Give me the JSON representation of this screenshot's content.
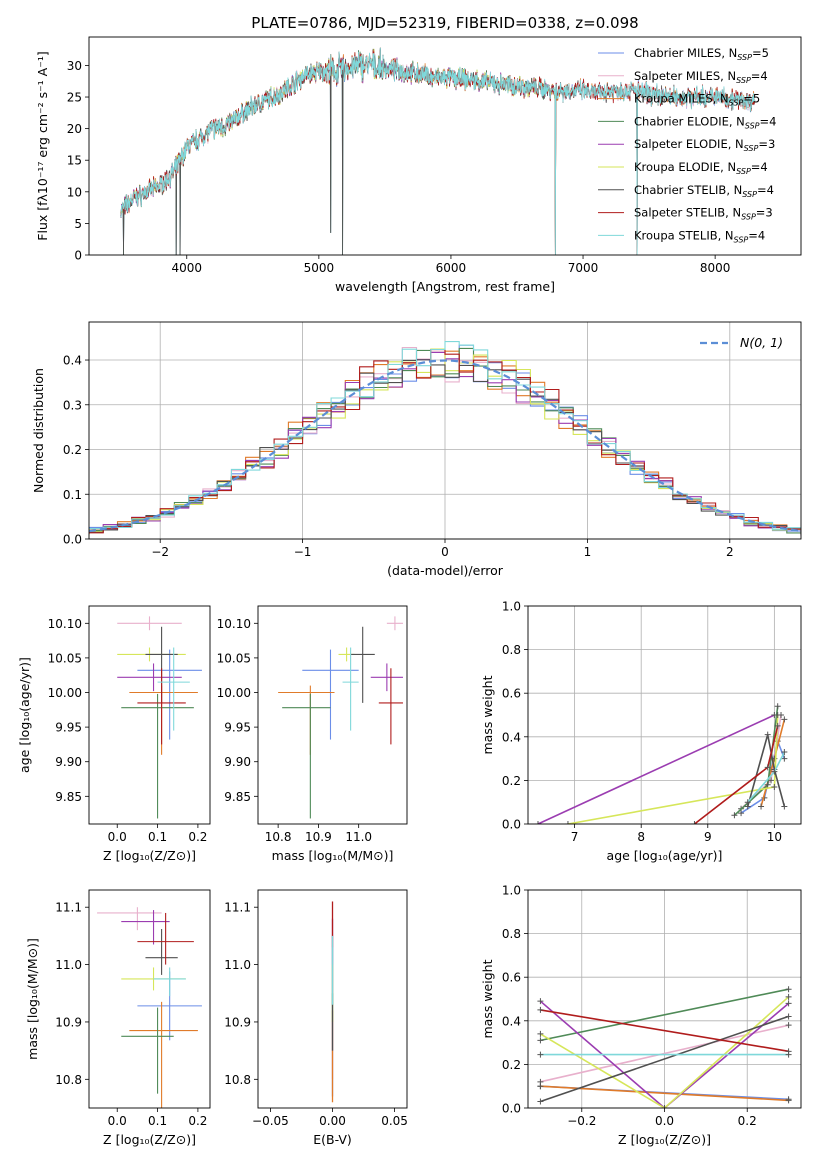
{
  "figure_title": "PLATE=0786, MJD=52319, FIBERID=0338, z=0.098",
  "colors": [
    "#6b8ee8",
    "#e8b0cc",
    "#e07b2a",
    "#4f8a57",
    "#9b3db1",
    "#d6e65a",
    "#505050",
    "#b01c1c",
    "#7fd8da"
  ],
  "chart_data": [
    {
      "id": "spectrum",
      "type": "line",
      "title": "PLATE=0786, MJD=52319, FIBERID=0338, z=0.098",
      "xlabel": "wavelength [Angstrom, rest frame]",
      "ylabel": "Flux [fλ10⁻¹⁷ erg cm⁻² s⁻¹ A⁻¹]",
      "xlim": [
        3260,
        8650
      ],
      "ylim": [
        0,
        34.5
      ],
      "xticks": [
        4000,
        5000,
        6000,
        7000,
        8000
      ],
      "yticks": [
        0,
        5,
        10,
        15,
        20,
        25,
        30
      ],
      "legend": "top-right",
      "grid": false,
      "continuum": [
        [
          3500,
          7
        ],
        [
          3600,
          9
        ],
        [
          3700,
          10
        ],
        [
          3800,
          11
        ],
        [
          3900,
          13
        ],
        [
          3950,
          15
        ],
        [
          4000,
          17
        ],
        [
          4100,
          18.5
        ],
        [
          4200,
          20
        ],
        [
          4300,
          20.5
        ],
        [
          4400,
          22
        ],
        [
          4500,
          23.5
        ],
        [
          4600,
          24.5
        ],
        [
          4700,
          25.5
        ],
        [
          4800,
          27
        ],
        [
          4900,
          28.5
        ],
        [
          5000,
          29
        ],
        [
          5100,
          29
        ],
        [
          5200,
          29.5
        ],
        [
          5300,
          30
        ],
        [
          5400,
          30
        ],
        [
          5500,
          29.5
        ],
        [
          5600,
          29.2
        ],
        [
          5700,
          28.8
        ],
        [
          5800,
          28.5
        ],
        [
          5900,
          28
        ],
        [
          6000,
          28
        ],
        [
          6100,
          27.8
        ],
        [
          6200,
          27.6
        ],
        [
          6300,
          27.2
        ],
        [
          6400,
          27
        ],
        [
          6500,
          26.8
        ],
        [
          6600,
          26.5
        ],
        [
          6700,
          26.3
        ],
        [
          6800,
          26
        ],
        [
          6900,
          26
        ],
        [
          7000,
          26
        ],
        [
          7100,
          25.5
        ],
        [
          7200,
          26
        ],
        [
          7300,
          26
        ],
        [
          7400,
          26
        ],
        [
          7500,
          25.5
        ],
        [
          7600,
          25.2
        ],
        [
          7700,
          25
        ],
        [
          7800,
          25
        ],
        [
          7900,
          25
        ],
        [
          8000,
          25
        ],
        [
          8100,
          24.8
        ],
        [
          8200,
          24.5
        ],
        [
          8300,
          24.4
        ]
      ],
      "series": [
        {
          "label": "Chabrier MILES, N",
          "sub": "SSP",
          "suffix": "=5",
          "xmax": 8300
        },
        {
          "label": "Salpeter MILES, N",
          "sub": "SSP",
          "suffix": "=4",
          "xmax": 8300
        },
        {
          "label": "Kroupa MILES, N",
          "sub": "SSP",
          "suffix": "=5",
          "xmax": 8300
        },
        {
          "label": "Chabrier ELODIE, N",
          "sub": "SSP",
          "suffix": "=4",
          "xmax": 6800
        },
        {
          "label": "Salpeter ELODIE, N",
          "sub": "SSP",
          "suffix": "=3",
          "xmax": 6800
        },
        {
          "label": "Kroupa ELODIE, N",
          "sub": "SSP",
          "suffix": "=4",
          "xmax": 6800
        },
        {
          "label": "Chabrier STELIB, N",
          "sub": "SSP",
          "suffix": "=4",
          "xmax": 8300
        },
        {
          "label": "Salpeter STELIB, N",
          "sub": "SSP",
          "suffix": "=3",
          "xmax": 8300
        },
        {
          "label": "Kroupa STELIB, N",
          "sub": "SSP",
          "suffix": "=4",
          "xmax": 8300
        }
      ],
      "drops": [
        [
          3520,
          0
        ],
        [
          3920,
          0
        ],
        [
          3950,
          0
        ],
        [
          5090,
          3.5
        ],
        [
          5180,
          0
        ],
        [
          6790,
          0
        ],
        [
          7410,
          0
        ]
      ]
    },
    {
      "id": "residuals",
      "type": "step",
      "xlabel": "(data-model)/error",
      "ylabel": "Normed distribution",
      "xlim": [
        -2.5,
        2.5
      ],
      "ylim": [
        0,
        0.485
      ],
      "xticks": [
        -2,
        -1,
        0,
        1,
        2
      ],
      "yticks": [
        0.0,
        0.1,
        0.2,
        0.3,
        0.4
      ],
      "grid": true,
      "bin_width": 0.1,
      "reference": {
        "label": "N(0, 1)",
        "color": "#5b8ed6"
      },
      "legend": "top-right"
    },
    {
      "id": "age-vs-Z",
      "type": "errorbar",
      "xlabel": "Z [log₁₀(Z/Z⊙)]",
      "ylabel": "age  [log₁₀(age/yr)]",
      "xlim": [
        -0.07,
        0.23
      ],
      "ylim": [
        9.81,
        10.125
      ],
      "xticks": [
        0.0,
        0.1,
        0.2
      ],
      "yticks": [
        9.85,
        9.9,
        9.95,
        10.0,
        10.05,
        10.1
      ],
      "points": [
        {
          "x": 0.13,
          "xerr": [
            0.08,
            0.08
          ],
          "y": 10.032,
          "yerr": [
            0.1,
            0.03
          ]
        },
        {
          "x": 0.08,
          "xerr": [
            0.08,
            0.08
          ],
          "y": 10.1,
          "yerr": [
            0.01,
            0.01
          ]
        },
        {
          "x": 0.11,
          "xerr": [
            0.08,
            0.09
          ],
          "y": 10.0,
          "yerr": [
            0.09,
            0.01
          ]
        },
        {
          "x": 0.1,
          "xerr": [
            0.09,
            0.09
          ],
          "y": 9.978,
          "yerr": [
            0.16,
            0.02
          ]
        },
        {
          "x": 0.09,
          "xerr": [
            0.09,
            0.07
          ],
          "y": 10.022,
          "yerr": [
            0.02,
            0.02
          ]
        },
        {
          "x": 0.08,
          "xerr": [
            0.08,
            0.09
          ],
          "y": 10.055,
          "yerr": [
            0.01,
            0.01
          ]
        },
        {
          "x": 0.11,
          "xerr": [
            0.04,
            0.04
          ],
          "y": 10.055,
          "yerr": [
            0.07,
            0.04
          ]
        },
        {
          "x": 0.11,
          "xerr": [
            0.06,
            0.06
          ],
          "y": 9.985,
          "yerr": [
            0.06,
            0.05
          ]
        },
        {
          "x": 0.14,
          "xerr": [
            0.04,
            0.04
          ],
          "y": 10.015,
          "yerr": [
            0.07,
            0.05
          ]
        }
      ]
    },
    {
      "id": "age-vs-mass",
      "type": "errorbar",
      "xlabel": "mass [log₁₀(M/M⊙)]",
      "ylabel": "",
      "xlim": [
        10.75,
        11.12
      ],
      "ylim": [
        9.81,
        10.125
      ],
      "xticks": [
        10.8,
        10.9,
        11.0
      ],
      "xticklabels": [
        "10.8",
        "10.9",
        "11.0"
      ],
      "yticks": [
        9.85,
        9.9,
        9.95,
        10.0,
        10.05,
        10.1
      ],
      "points": [
        {
          "x": 10.93,
          "xerr": [
            0.07,
            0.07
          ],
          "y": 10.032,
          "yerr": [
            0.1,
            0.03
          ]
        },
        {
          "x": 11.09,
          "xerr": [
            0.02,
            0.02
          ],
          "y": 10.1,
          "yerr": [
            0.01,
            0.01
          ]
        },
        {
          "x": 10.88,
          "xerr": [
            0.08,
            0.06
          ],
          "y": 10.0,
          "yerr": [
            0.09,
            0.01
          ]
        },
        {
          "x": 10.88,
          "xerr": [
            0.07,
            0.05
          ],
          "y": 9.978,
          "yerr": [
            0.16,
            0.02
          ]
        },
        {
          "x": 11.07,
          "xerr": [
            0.04,
            0.04
          ],
          "y": 10.022,
          "yerr": [
            0.02,
            0.02
          ]
        },
        {
          "x": 10.97,
          "xerr": [
            0.02,
            0.02
          ],
          "y": 10.055,
          "yerr": [
            0.01,
            0.01
          ]
        },
        {
          "x": 11.01,
          "xerr": [
            0.03,
            0.03
          ],
          "y": 10.055,
          "yerr": [
            0.07,
            0.04
          ]
        },
        {
          "x": 11.08,
          "xerr": [
            0.03,
            0.03
          ],
          "y": 9.985,
          "yerr": [
            0.06,
            0.05
          ]
        },
        {
          "x": 10.98,
          "xerr": [
            0.02,
            0.02
          ],
          "y": 10.015,
          "yerr": [
            0.07,
            0.05
          ]
        }
      ]
    },
    {
      "id": "weight-vs-age",
      "type": "line",
      "xlabel": "age  [log₁₀(age/yr)]",
      "ylabel": "mass weight",
      "xlim": [
        6.3,
        10.4
      ],
      "ylim": [
        0,
        1.0
      ],
      "xticks": [
        7,
        8,
        9,
        10
      ],
      "yticks": [
        0.0,
        0.2,
        0.4,
        0.6,
        0.8,
        1.0
      ],
      "grid": true,
      "lines": [
        {
          "pts": [
            [
              9.5,
              0.05
            ],
            [
              9.85,
              0.12
            ],
            [
              10.05,
              0.38
            ],
            [
              10.15,
              0.3
            ]
          ]
        },
        {
          "pts": [
            [
              9.5,
              0.07
            ],
            [
              9.95,
              0.2
            ],
            [
              10.1,
              0.5
            ]
          ]
        },
        {
          "pts": [
            [
              9.8,
              0.08
            ],
            [
              10.0,
              0.3
            ],
            [
              10.15,
              0.48
            ]
          ]
        },
        {
          "pts": [
            [
              9.4,
              0.04
            ],
            [
              9.9,
              0.18
            ],
            [
              10.05,
              0.54
            ]
          ]
        },
        {
          "pts": [
            [
              6.45,
              0.0
            ],
            [
              10.0,
              0.5
            ]
          ]
        },
        {
          "pts": [
            [
              6.9,
              0.0
            ],
            [
              10.0,
              0.17
            ],
            [
              10.05,
              0.5
            ]
          ]
        },
        {
          "pts": [
            [
              9.6,
              0.08
            ],
            [
              9.9,
              0.41
            ],
            [
              10.0,
              0.25
            ],
            [
              10.15,
              0.08
            ]
          ]
        },
        {
          "pts": [
            [
              8.8,
              0.0
            ],
            [
              9.9,
              0.26
            ],
            [
              10.05,
              0.45
            ]
          ]
        },
        {
          "pts": [
            [
              9.6,
              0.1
            ],
            [
              10.0,
              0.24
            ],
            [
              10.15,
              0.33
            ]
          ]
        }
      ]
    },
    {
      "id": "mass-vs-Z",
      "type": "errorbar",
      "xlabel": "Z [log₁₀(Z/Z⊙)]",
      "ylabel": "mass [log₁₀(M/M⊙)]",
      "xlim": [
        -0.07,
        0.23
      ],
      "ylim": [
        10.75,
        11.13
      ],
      "xticks": [
        0.0,
        0.1,
        0.2
      ],
      "yticks": [
        10.8,
        10.9,
        11.0,
        11.1
      ],
      "points": [
        {
          "x": 0.13,
          "xerr": [
            0.08,
            0.08
          ],
          "y": 10.928,
          "yerr": [
            0.06,
            0.06
          ]
        },
        {
          "x": 0.05,
          "xerr": [
            0.1,
            0.06
          ],
          "y": 11.09,
          "yerr": [
            0.03,
            0.01
          ]
        },
        {
          "x": 0.11,
          "xerr": [
            0.08,
            0.09
          ],
          "y": 10.885,
          "yerr": [
            0.14,
            0.05
          ]
        },
        {
          "x": 0.1,
          "xerr": [
            0.09,
            0.04
          ],
          "y": 10.875,
          "yerr": [
            0.1,
            0.05
          ]
        },
        {
          "x": 0.09,
          "xerr": [
            0.08,
            0.04
          ],
          "y": 11.075,
          "yerr": [
            0.04,
            0.02
          ]
        },
        {
          "x": 0.09,
          "xerr": [
            0.08,
            0.08
          ],
          "y": 10.975,
          "yerr": [
            0.02,
            0.02
          ]
        },
        {
          "x": 0.11,
          "xerr": [
            0.04,
            0.04
          ],
          "y": 11.012,
          "yerr": [
            0.03,
            0.05
          ]
        },
        {
          "x": 0.12,
          "xerr": [
            0.07,
            0.07
          ],
          "y": 11.04,
          "yerr": [
            0.04,
            0.05
          ]
        },
        {
          "x": 0.13,
          "xerr": [
            0.04,
            0.04
          ],
          "y": 10.975,
          "yerr": [
            0.03,
            0.02
          ]
        }
      ]
    },
    {
      "id": "mass-vs-EBV",
      "type": "errorbar",
      "xlabel": "E(B-V)",
      "ylabel": "",
      "xlim": [
        -0.06,
        0.06
      ],
      "ylim": [
        10.75,
        11.13
      ],
      "xticks": [
        -0.05,
        0.0,
        0.05
      ],
      "xticklabels": [
        "−0.05",
        "0.00",
        "0.05"
      ],
      "yticks": [
        10.8,
        10.9,
        11.0,
        11.1
      ],
      "segments": [
        {
          "y0": 10.77,
          "y1": 10.9
        },
        {
          "y0": 10.8,
          "y1": 10.9
        },
        {
          "y0": 10.76,
          "y1": 10.92
        },
        {
          "y0": 10.9,
          "y1": 11.03
        },
        {
          "y0": 10.95,
          "y1": 11.08
        },
        {
          "y0": 10.9,
          "y1": 11.0
        },
        {
          "y0": 10.85,
          "y1": 10.95
        },
        {
          "y0": 11.03,
          "y1": 11.11
        },
        {
          "y0": 10.93,
          "y1": 11.05
        }
      ]
    },
    {
      "id": "weight-vs-Z",
      "type": "line",
      "xlabel": "Z [log₁₀(Z/Z⊙)]",
      "ylabel": "mass weight",
      "xlim": [
        -0.33,
        0.33
      ],
      "ylim": [
        0,
        1.0
      ],
      "xticks": [
        -0.2,
        0.0,
        0.2
      ],
      "xticklabels": [
        "−0.2",
        "0.0",
        "0.2"
      ],
      "yticks": [
        0.0,
        0.2,
        0.4,
        0.6,
        0.8,
        1.0
      ],
      "grid": true,
      "lines": [
        {
          "pts": [
            [
              -0.3,
              0.1
            ],
            [
              0.3,
              0.04
            ]
          ]
        },
        {
          "pts": [
            [
              -0.3,
              0.12
            ],
            [
              0.3,
              0.38
            ]
          ]
        },
        {
          "pts": [
            [
              -0.3,
              0.1
            ],
            [
              0.3,
              0.035
            ]
          ]
        },
        {
          "pts": [
            [
              -0.3,
              0.31
            ],
            [
              0.3,
              0.545
            ]
          ]
        },
        {
          "pts": [
            [
              -0.3,
              0.49
            ],
            [
              0.0,
              0.0
            ],
            [
              0.3,
              0.48
            ]
          ]
        },
        {
          "pts": [
            [
              -0.3,
              0.34
            ],
            [
              0.0,
              0.0
            ],
            [
              0.3,
              0.51
            ]
          ]
        },
        {
          "pts": [
            [
              -0.3,
              0.03
            ],
            [
              0.3,
              0.42
            ]
          ]
        },
        {
          "pts": [
            [
              -0.3,
              0.45
            ],
            [
              0.3,
              0.26
            ]
          ]
        },
        {
          "pts": [
            [
              -0.3,
              0.245
            ],
            [
              0.3,
              0.245
            ]
          ]
        }
      ]
    }
  ]
}
